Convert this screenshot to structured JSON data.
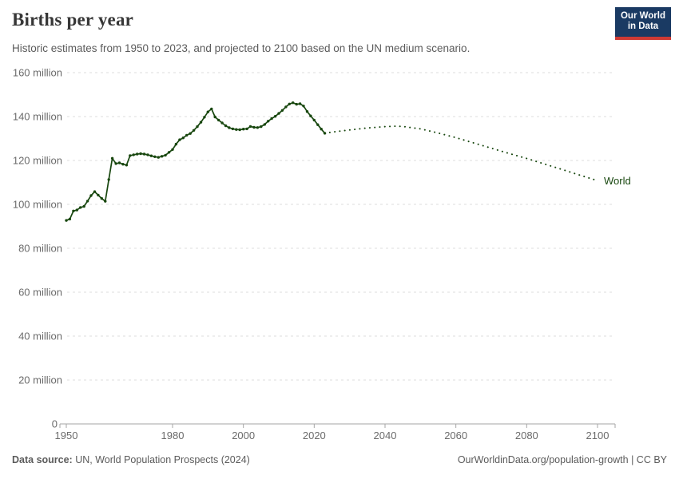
{
  "header": {
    "title": "Births per year",
    "subtitle": "Historic estimates from 1950 to 2023, and projected to 2100 based on the UN medium scenario.",
    "logo": {
      "line1": "Our World",
      "line2": "in Data"
    }
  },
  "footer": {
    "source_label": "Data source:",
    "source_text": " UN, World Population Prospects (2024)",
    "link_text": "OurWorldinData.org/population-growth | CC BY"
  },
  "chart_data": {
    "type": "line",
    "title": "Births per year",
    "entity_label": "World",
    "line_color": "#18470f",
    "grid": true,
    "legend_position": "end-of-line",
    "xlabel": "",
    "ylabel": "births per year",
    "y_unit": "million",
    "xlim": [
      1950,
      2100
    ],
    "ylim": [
      0,
      160
    ],
    "x_ticks": [
      1950,
      1980,
      2000,
      2020,
      2040,
      2060,
      2080,
      2100
    ],
    "y_ticks": [
      {
        "value": 0,
        "label": "0"
      },
      {
        "value": 20,
        "label": "20 million"
      },
      {
        "value": 40,
        "label": "40 million"
      },
      {
        "value": 60,
        "label": "60 million"
      },
      {
        "value": 80,
        "label": "80 million"
      },
      {
        "value": 100,
        "label": "100 million"
      },
      {
        "value": 120,
        "label": "120 million"
      },
      {
        "value": 140,
        "label": "140 million"
      },
      {
        "value": 160,
        "label": "160 million"
      }
    ],
    "series": [
      {
        "name": "World — historic estimates (1950–2023)",
        "style": "solid",
        "markers": true,
        "x": [
          1950,
          1951,
          1952,
          1953,
          1954,
          1955,
          1956,
          1957,
          1958,
          1959,
          1960,
          1961,
          1962,
          1963,
          1964,
          1965,
          1966,
          1967,
          1968,
          1969,
          1970,
          1971,
          1972,
          1973,
          1974,
          1975,
          1976,
          1977,
          1978,
          1979,
          1980,
          1981,
          1982,
          1983,
          1984,
          1985,
          1986,
          1987,
          1988,
          1989,
          1990,
          1991,
          1992,
          1993,
          1994,
          1995,
          1996,
          1997,
          1998,
          1999,
          2000,
          2001,
          2002,
          2003,
          2004,
          2005,
          2006,
          2007,
          2008,
          2009,
          2010,
          2011,
          2012,
          2013,
          2014,
          2015,
          2016,
          2017,
          2018,
          2019,
          2020,
          2021,
          2022,
          2023
        ],
        "values": [
          92.7,
          93.3,
          97.0,
          97.4,
          98.6,
          99.1,
          101.5,
          104.0,
          105.8,
          104.2,
          102.7,
          101.4,
          111.3,
          121.0,
          118.6,
          118.9,
          118.3,
          117.9,
          122.2,
          122.6,
          122.9,
          123.1,
          122.9,
          122.6,
          122.1,
          121.7,
          121.4,
          121.9,
          122.4,
          123.7,
          125.0,
          127.4,
          129.4,
          130.3,
          131.5,
          132.3,
          133.7,
          135.4,
          137.4,
          139.7,
          142.1,
          143.5,
          139.8,
          138.4,
          137.1,
          135.8,
          134.9,
          134.4,
          134.1,
          134.0,
          134.3,
          134.4,
          135.5,
          135.1,
          135.0,
          135.4,
          136.4,
          137.9,
          139.1,
          140.1,
          141.4,
          142.8,
          144.4,
          145.7,
          146.3,
          145.6,
          145.8,
          144.8,
          142.3,
          140.3,
          138.4,
          136.3,
          134.3,
          132.4
        ]
      },
      {
        "name": "World — UN medium scenario projection (2023–2100)",
        "style": "dotted",
        "markers": false,
        "x": [
          2023,
          2025,
          2030,
          2035,
          2040,
          2043,
          2045,
          2050,
          2055,
          2060,
          2065,
          2070,
          2075,
          2080,
          2085,
          2090,
          2095,
          2100
        ],
        "values": [
          132.4,
          132.9,
          133.9,
          134.8,
          135.4,
          135.6,
          135.5,
          134.4,
          132.5,
          130.4,
          128.0,
          125.6,
          123.2,
          120.9,
          118.4,
          115.9,
          113.3,
          110.8
        ]
      }
    ]
  }
}
